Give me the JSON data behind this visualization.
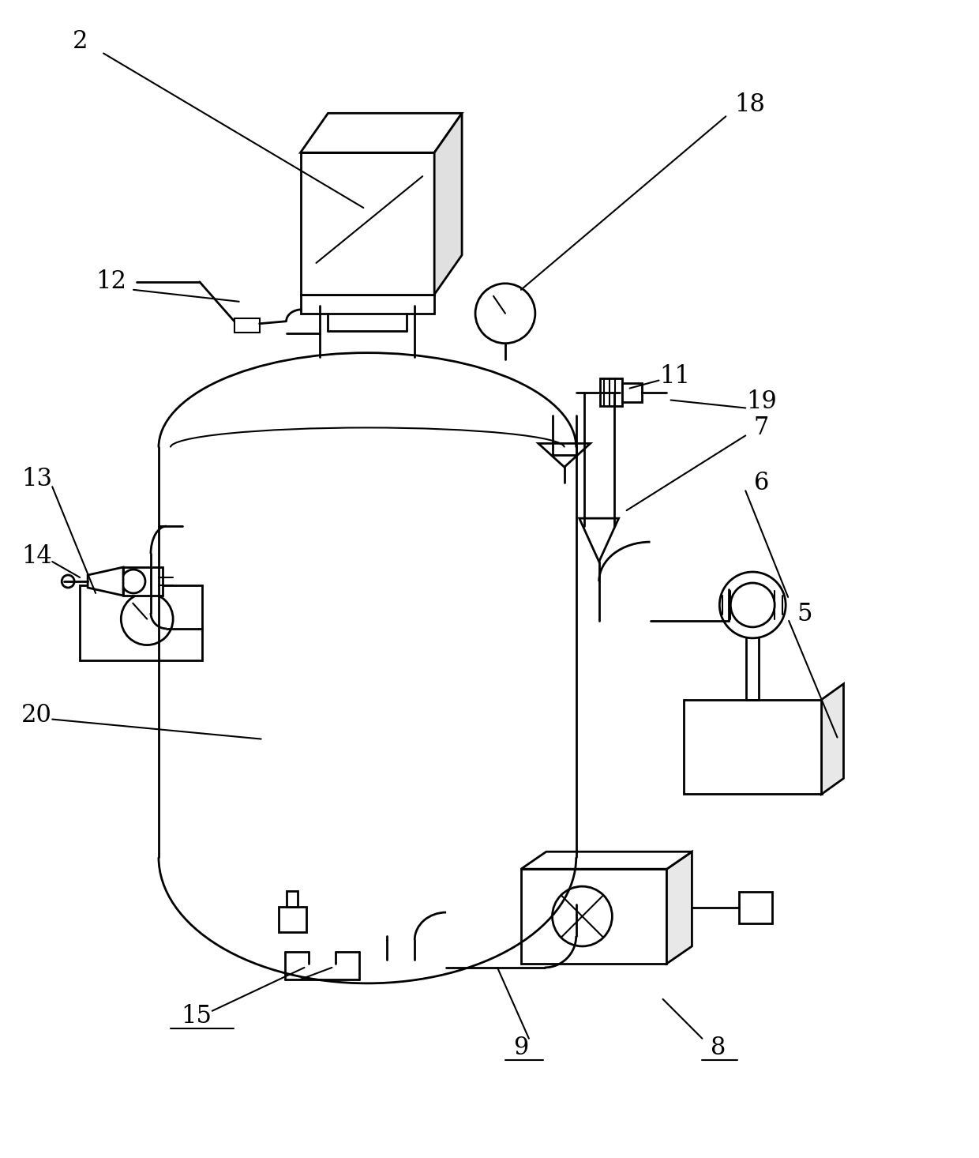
{
  "bg_color": "#ffffff",
  "line_color": "#000000",
  "lw": 2.0,
  "lwt": 1.5,
  "fig_width": 12.4,
  "fig_height": 14.66,
  "dpi": 100,
  "xlim": [
    0,
    1240
  ],
  "ylim": [
    0,
    1466
  ]
}
